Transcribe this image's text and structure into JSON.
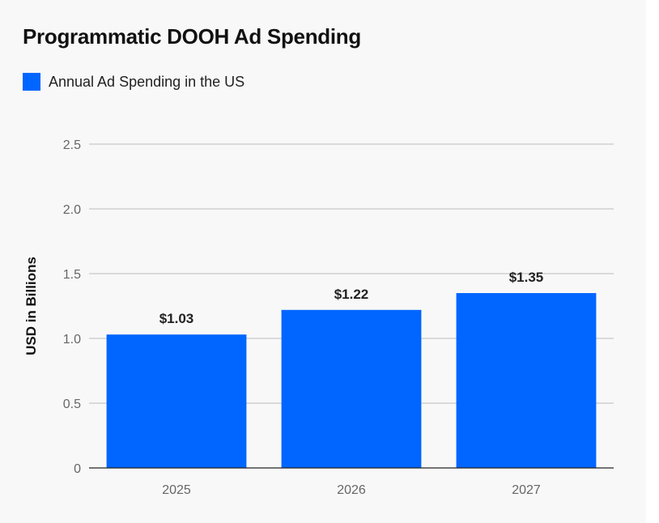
{
  "chart_data": {
    "type": "bar",
    "title": "Programmatic DOOH Ad Spending",
    "legend": [
      {
        "label": "Annual Ad Spending in the US",
        "color": "#0066ff"
      }
    ],
    "categories": [
      "2025",
      "2026",
      "2027"
    ],
    "series": [
      {
        "name": "Annual Ad Spending in the US",
        "values": [
          1.03,
          1.22,
          1.35
        ],
        "color": "#0066ff"
      }
    ],
    "data_labels": [
      "$1.03",
      "$1.22",
      "$1.35"
    ],
    "ylabel": "USD in Billions",
    "xlabel": "",
    "ylim": [
      0,
      2.5
    ],
    "yticks": [
      "0",
      "0.5",
      "1.0",
      "1.5",
      "2.0",
      "2.5"
    ],
    "grid": true
  }
}
